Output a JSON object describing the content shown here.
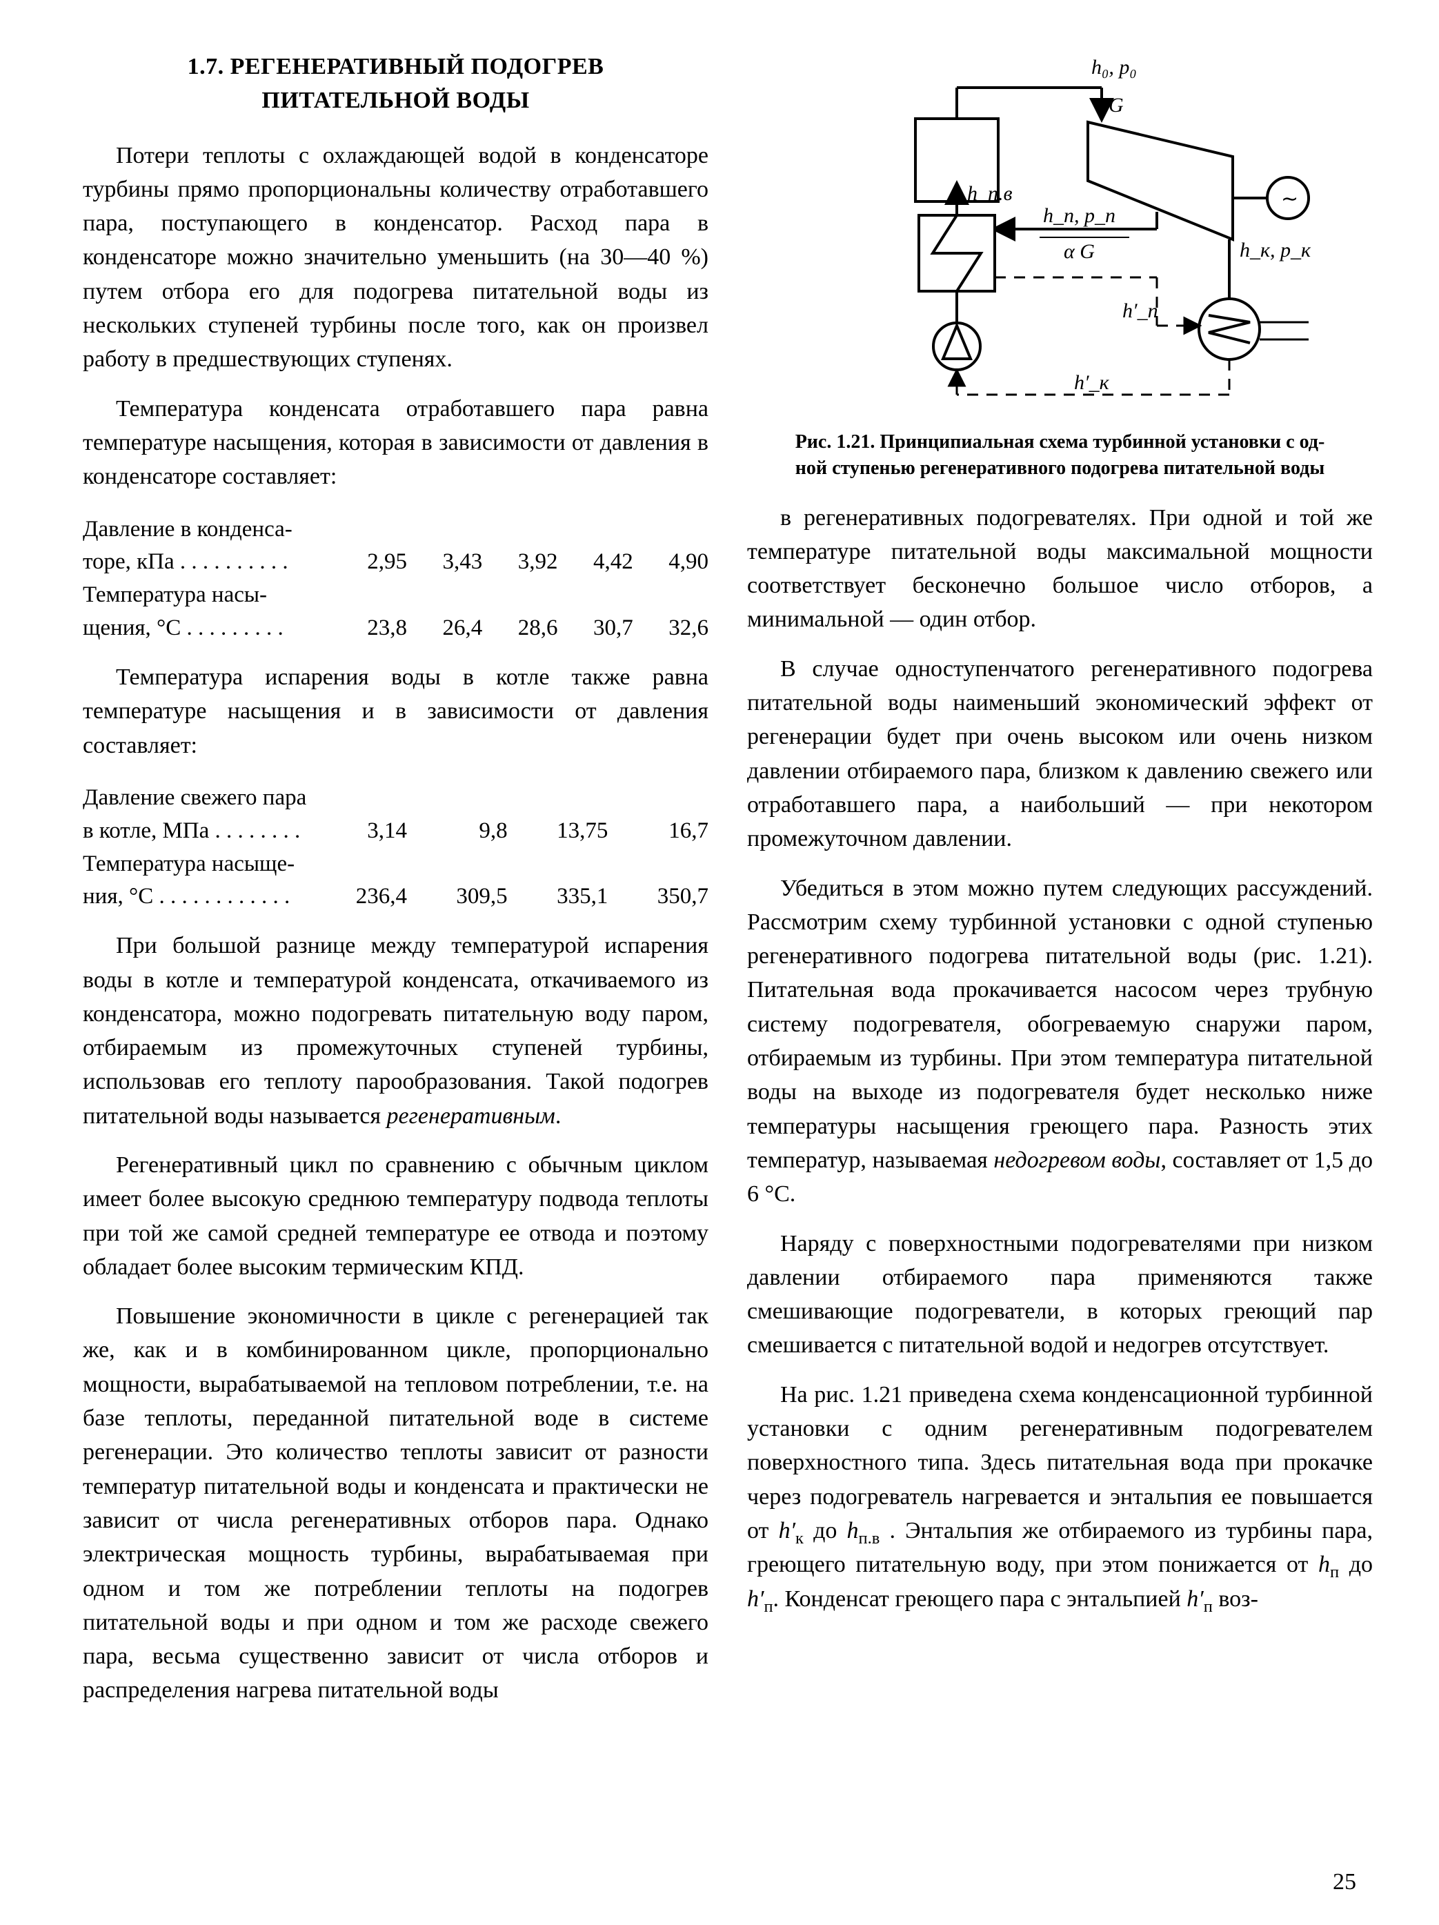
{
  "page_number": "25",
  "section": {
    "number": "1.7.",
    "title_line1": "РЕГЕНЕРАТИВНЫЙ ПОДОГРЕВ",
    "title_line2": "ПИТАТЕЛЬНОЙ ВОДЫ"
  },
  "left": {
    "p1": "Потери теплоты с охлаждающей водой в конденсаторе турбины прямо пропорциональны количеству отработавшего пара, поступающего в конденсатор. Расход пара в конденсаторе можно значительно уменьшить (на 30—40 %) путем отбора его для подогрева питательной воды из нескольких ступеней турбины после того, как он произвел работу в предшествующих ступенях.",
    "p2": "Температура конденсата отработавшего пара равна температуре насыщения, которая в зависимости от давления в конденсаторе составляет:",
    "table1": {
      "row1_label_a": "Давление в конденса-",
      "row1_label_b": "торе, кПа . . . . . . . . . .",
      "row1_vals": [
        "2,95",
        "3,43",
        "3,92",
        "4,42",
        "4,90"
      ],
      "row2_label_a": "Температура насы-",
      "row2_label_b": "щения, °C . . . . . . . . .",
      "row2_vals": [
        "23,8",
        "26,4",
        "28,6",
        "30,7",
        "32,6"
      ]
    },
    "p3": "Температура испарения воды в котле также равна температуре насыщения и в зависимости от давления составляет:",
    "table2": {
      "row1_label_a": "Давление свежего пара",
      "row1_label_b": "в котле, МПа . . . . . . . .",
      "row1_vals": [
        "3,14",
        "9,8",
        "13,75",
        "16,7"
      ],
      "row2_label_a": "Температура насыще-",
      "row2_label_b": "ния, °C . . . . . . . . . . . .",
      "row2_vals": [
        "236,4",
        "309,5",
        "335,1",
        "350,7"
      ]
    },
    "p4_a": "При большой разнице между температурой испарения воды в котле и температурой конденсата, откачиваемого из конденсатора, можно подогревать питательную воду паром, отбираемым из промежуточных ступеней турбины, использовав его теплоту парообразования. Такой подогрев питательной воды называется ",
    "p4_em": "регенеративным",
    "p4_b": ".",
    "p5": "Регенеративный цикл по сравнению с обычным циклом имеет более высокую среднюю температуру подвода теплоты при той же самой средней температуре ее отвода и поэтому обладает более высоким термическим КПД.",
    "p6": "Повышение экономичности в цикле с регенерацией так же, как и в комбинированном цикле, пропорционально мощности, вырабатываемой на тепловом потреблении, т.е. на базе теплоты, переданной питательной воде в системе регенерации. Это количество теплоты зависит от разности температур питательной воды и конденсата и практически не зависит от числа регенеративных отборов пара. Однако электрическая мощность турбины, вырабатываемая при одном и том же потреблении теплоты на подогрев питательной воды и при одном и том же расходе свежего пара, весьма существенно зависит от числа отборов и распределения нагрева питательной воды"
  },
  "figure": {
    "caption_line1": "Рис. 1.21. Принципиальная схема турбинной установки с од-",
    "caption_line2": "ной ступенью регенеративного подогрева питательной воды",
    "labels": {
      "h0p0": "h₀, p₀",
      "G": "G",
      "hpv": "h_п.в",
      "hp_pp": "h_п, p_п",
      "aG": "α G",
      "hk_pk": "h_к, p_к",
      "hprime_p": "h′_п",
      "hprime_k": "h′_к",
      "tilde": "∼"
    },
    "stroke_color": "#000000",
    "fill_bg": "#ffffff",
    "line_width_main": 4,
    "line_width_thin": 3,
    "dash_pattern": "16 12"
  },
  "right": {
    "p1": "в регенеративных подогревателях. При одной и той же температуре питательной воды максимальной мощности соответствует бесконечно большое число отборов, а минимальной — один отбор.",
    "p2": "В случае одноступенчатого регенеративного подогрева питательной воды наименьший экономический эффект от регенерации будет при очень высоком или очень низком давлении отбираемого пара, близком к давлению свежего или отработавшего пара, а наибольший — при некотором промежуточном давлении.",
    "p3_a": "Убедиться в этом можно путем следующих рассуждений. Рассмотрим схему турбинной установки с одной ступенью регенеративного подогрева питательной воды (рис. 1.21). Питательная вода прокачивается насосом через трубную систему подогревателя, обогреваемую снаружи паром, отбираемым из турбины. При этом температура питательной воды на выходе из подогревателя будет несколько ниже температуры насыщения греющего пара. Разность этих температур, называемая ",
    "p3_em": "недогревом воды",
    "p3_b": ", составляет от 1,5 до 6 °C.",
    "p4": "Наряду с поверхностными подогревателями при низком давлении отбираемого пара применяются также смешивающие подогреватели, в которых греющий пар смешивается с питательной водой и недогрев отсутствует.",
    "p5_html": "На рис. 1.21 приведена схема конденсационной турбинной установки с одним регенеративным подогревателем поверхностного типа. Здесь питательная вода при прокачке через подогреватель нагревается и энтальпия ее повышается от <span class=\"mi\">h′</span><sub>к</sub> до <span class=\"mi\">h</span><sub>п.в</sub> . Энтальпия же отбираемого из турбины пара, греющего питательную воду, при этом понижается от <span class=\"mi\">h</span><sub>п</sub> до <span class=\"mi\">h′</span><sub>п</sub>. Конденсат греющего пара с энтальпией <span class=\"mi\">h′</span><sub>п</sub> воз-"
  }
}
